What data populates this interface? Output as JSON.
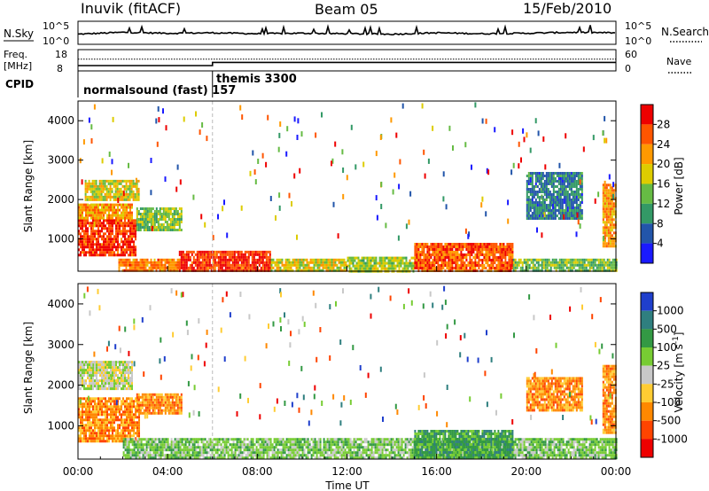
{
  "header": {
    "station": "Inuvik (fitACF)",
    "beam": "Beam 05",
    "date": "15/Feb/2010"
  },
  "sky_panel": {
    "left_label": "N.Sky",
    "right_label": "N.Search",
    "left_ticks": [
      "10^5",
      "10^0"
    ],
    "right_ticks": [
      "10^5",
      "10^0"
    ]
  },
  "freq_panel": {
    "left_label_1": "Freq.",
    "left_label_2": "[MHz]",
    "right_label": "Nave",
    "left_ticks": [
      "18",
      "8"
    ],
    "right_ticks": [
      "60",
      "0"
    ]
  },
  "cpid_panel": {
    "label": "CPID",
    "modes": [
      {
        "name": "normalsound (fast) 157",
        "start_hour": 0,
        "end_hour": 6
      },
      {
        "name": "themis 3300",
        "start_hour": 6,
        "end_hour": 24
      }
    ]
  },
  "power_panel": {
    "ylabel": "Slant Range [km]",
    "yticks": [
      "1000",
      "2000",
      "3000",
      "4000"
    ],
    "colorbar_label": "Power [dB]",
    "colorbar_ticks": [
      "4",
      "8",
      "12",
      "16",
      "20",
      "24",
      "28"
    ],
    "colors": [
      "#1a1aff",
      "#2255aa",
      "#339966",
      "#66bb44",
      "#ddcc00",
      "#ff9900",
      "#ff5500",
      "#ee0000"
    ]
  },
  "velocity_panel": {
    "ylabel": "Slant Range [km]",
    "yticks": [
      "1000",
      "2000",
      "3000",
      "4000"
    ],
    "colorbar_label": "Velocity [m s^-1]",
    "colorbar_ticks": [
      "1000",
      "500",
      "100",
      "25",
      "-25",
      "-100",
      "-500",
      "-1000"
    ],
    "colors": [
      "#1f3fcc",
      "#2f7f7f",
      "#339944",
      "#77cc33",
      "#c8c8c8",
      "#ffcc33",
      "#ff8800",
      "#ff4400",
      "#ee0000"
    ]
  },
  "time_axis": {
    "label": "Time UT",
    "ticks": [
      "00:00",
      "04:00",
      "08:00",
      "12:00",
      "16:00",
      "20:00",
      "00:00"
    ]
  },
  "chart_data": [
    {
      "type": "line",
      "name": "sky-search-noise",
      "x": [
        0,
        2,
        4,
        6,
        8,
        10,
        12,
        14,
        16,
        18,
        20,
        22,
        24
      ],
      "series": [
        {
          "values": [
            2.2,
            2.6,
            2.4,
            2.5,
            2.3,
            2.4,
            2.3,
            2.2,
            2.5,
            2.3,
            2.4,
            2.6,
            2.5
          ]
        }
      ]
    },
    {
      "type": "line",
      "name": "frequency-nave",
      "x": [
        0,
        6,
        6,
        24
      ],
      "series": [
        {
          "values": [
            10.5,
            10.5,
            12.0,
            12.0
          ]
        },
        {
          "values": [
            13.5,
            13.5,
            13.5,
            13.5
          ]
        }
      ],
      "ylim": [
        8,
        18
      ]
    },
    {
      "type": "heatmap",
      "name": "power",
      "xlim": [
        0,
        24
      ],
      "ylim": [
        180,
        4500
      ],
      "note_units": "x in UT hours, y in slant range km, value in dB",
      "regions": [
        {
          "x": [
            0,
            2.6
          ],
          "y": [
            600,
            1500
          ],
          "value": 28
        },
        {
          "x": [
            0,
            2.4
          ],
          "y": [
            1500,
            1900
          ],
          "value": 22
        },
        {
          "x": [
            0.3,
            2.7
          ],
          "y": [
            2000,
            2500
          ],
          "value": 18
        },
        {
          "x": [
            2.6,
            4.6
          ],
          "y": [
            1200,
            1800
          ],
          "value": 14
        },
        {
          "x": [
            4.5,
            8.6
          ],
          "y": [
            200,
            700
          ],
          "value": 28
        },
        {
          "x": [
            1.8,
            4.5
          ],
          "y": [
            200,
            500
          ],
          "value": 24
        },
        {
          "x": [
            8.6,
            12.0
          ],
          "y": [
            200,
            500
          ],
          "value": 18
        },
        {
          "x": [
            12.0,
            15.0
          ],
          "y": [
            200,
            550
          ],
          "value": 16
        },
        {
          "x": [
            15.0,
            19.4
          ],
          "y": [
            200,
            900
          ],
          "value": 26
        },
        {
          "x": [
            19.4,
            24
          ],
          "y": [
            200,
            500
          ],
          "value": 14
        },
        {
          "x": [
            20.0,
            22.5
          ],
          "y": [
            1500,
            2700
          ],
          "value": 8
        },
        {
          "x": [
            23.4,
            24
          ],
          "y": [
            800,
            2400
          ],
          "value": 22
        }
      ]
    },
    {
      "type": "heatmap",
      "name": "velocity",
      "xlim": [
        0,
        24
      ],
      "ylim": [
        180,
        4500
      ],
      "note_units": "x in UT hours, y in slant range km, value in m/s",
      "regions": [
        {
          "x": [
            0,
            2.7
          ],
          "y": [
            600,
            1700
          ],
          "value": -300
        },
        {
          "x": [
            0,
            2.4
          ],
          "y": [
            1900,
            2600
          ],
          "value": 10
        },
        {
          "x": [
            2.6,
            4.6
          ],
          "y": [
            1300,
            1800
          ],
          "value": -200
        },
        {
          "x": [
            2.0,
            24
          ],
          "y": [
            200,
            700
          ],
          "value": 80
        },
        {
          "x": [
            15.0,
            19.4
          ],
          "y": [
            200,
            900
          ],
          "value": 150
        },
        {
          "x": [
            20.0,
            22.5
          ],
          "y": [
            1400,
            2200
          ],
          "value": -400
        },
        {
          "x": [
            23.4,
            24
          ],
          "y": [
            800,
            2500
          ],
          "value": -500
        }
      ]
    }
  ]
}
